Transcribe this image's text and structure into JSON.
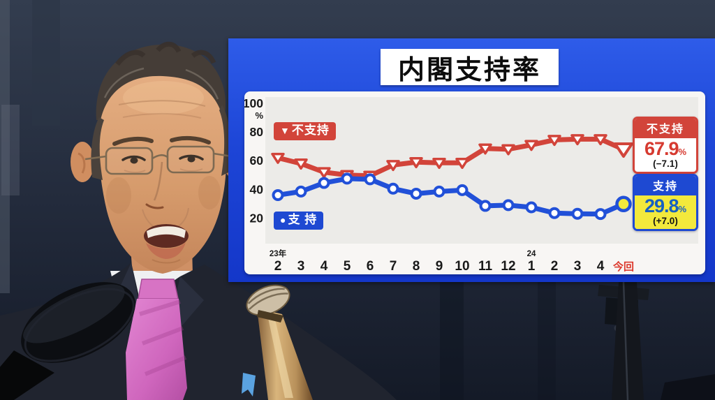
{
  "overlay": {
    "title": "内閣支持率",
    "banner_color_top": "#2e5ce9",
    "banner_color_bottom": "#1437c9"
  },
  "chart_data": {
    "type": "line",
    "title": "内閣支持率",
    "xlabel": "",
    "ylabel": "%",
    "ylim": [
      0,
      105
    ],
    "grid": false,
    "y_unit": "%",
    "y_ticks": [
      "100",
      "80",
      "60",
      "40",
      "20"
    ],
    "x_categories": [
      "2",
      "3",
      "4",
      "5",
      "6",
      "7",
      "8",
      "9",
      "10",
      "11",
      "12",
      "1",
      "2",
      "3",
      "4",
      "今回"
    ],
    "x_last_category_color": "#dc382c",
    "x_year_markers": [
      {
        "label": "23年",
        "index": 0
      },
      {
        "label": "24",
        "index": 11
      }
    ],
    "series": [
      {
        "name": "不支持",
        "legend_marker": "▼",
        "legend_label": "不支持",
        "color": "#d2443a",
        "marker": "triangle-down",
        "marker_fill": "#ffffff",
        "values": [
          62,
          58,
          52,
          50,
          49.5,
          57,
          59,
          58.5,
          58.5,
          68.5,
          68,
          71,
          74.5,
          75,
          75,
          67.9
        ]
      },
      {
        "name": "支持",
        "legend_marker": "●",
        "legend_label": "支 持",
        "color": "#2150d8",
        "marker": "circle",
        "marker_fill": "#ffffff",
        "last_marker_fill": "#f3e93c",
        "values": [
          36,
          38.5,
          44.5,
          47.5,
          47,
          40.5,
          37,
          38.5,
          39.5,
          28.5,
          29,
          27.5,
          23.5,
          23,
          22.8,
          29.8
        ]
      }
    ],
    "results": [
      {
        "name": "不支持",
        "value": "67.9",
        "unit": "%",
        "change": "(−7.1)",
        "header_bg": "#d2443a",
        "value_color": "#d63a30",
        "body_bg": "#ffffff"
      },
      {
        "name": "支持",
        "value": "29.8",
        "unit": "%",
        "change": "(+7.0)",
        "header_bg": "#1e49d2",
        "value_color": "#1760c2",
        "body_bg": "#f3e93c"
      }
    ],
    "legend_position": "inside-left"
  }
}
